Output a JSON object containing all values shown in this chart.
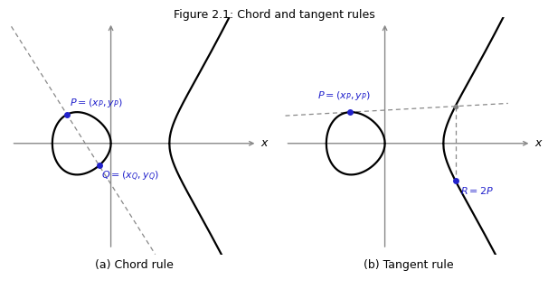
{
  "title": "Figure 2.1: Chord and tangent rules",
  "title_fontsize": 9,
  "subtitle_a": "(a) Chord rule",
  "subtitle_b": "(b) Tangent rule",
  "subtitle_fontsize": 9,
  "curve_color": "black",
  "axis_color": "#888888",
  "point_color": "#2222cc",
  "dashed_color": "#888888",
  "label_color": "#2222cc",
  "background": "white",
  "lw_curve": 1.6,
  "lw_dash": 0.9,
  "lw_axis": 1.0,
  "markersize_blue": 5,
  "markersize_gray": 4,
  "label_fontsize": 8
}
